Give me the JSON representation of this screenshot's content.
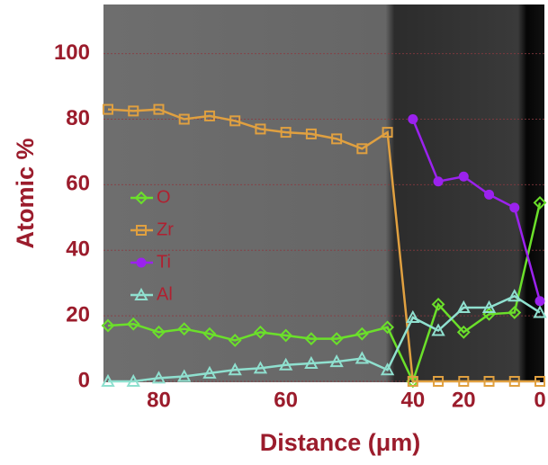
{
  "chart_data": {
    "type": "line",
    "x_label": "Distance (μm)",
    "y_label": "Atomic %",
    "categories": [
      null,
      null,
      "80",
      null,
      null,
      null,
      null,
      "60",
      null,
      null,
      null,
      null,
      "40",
      null,
      "20",
      null,
      null,
      "0"
    ],
    "ylim": [
      0,
      115
    ],
    "yticks": [
      0,
      20,
      40,
      60,
      80,
      100
    ],
    "grid": true,
    "legend": "left",
    "series": [
      {
        "name": "O",
        "color": "#6be02a",
        "marker": "diamond",
        "values": [
          17,
          17.5,
          15,
          16,
          14.5,
          12.5,
          15,
          14,
          13,
          13,
          14.5,
          16.5,
          0,
          23.5,
          15,
          20.5,
          21,
          54.5
        ]
      },
      {
        "name": "Zr",
        "color": "#e0a040",
        "marker": "square",
        "values": [
          83,
          82.5,
          83,
          80,
          81,
          79.5,
          77,
          76,
          75.5,
          74,
          71,
          76,
          0,
          0,
          0,
          0,
          0,
          0
        ]
      },
      {
        "name": "Ti",
        "color": "#9b22ee",
        "marker": "circle",
        "values": [
          null,
          null,
          null,
          null,
          null,
          null,
          null,
          null,
          null,
          null,
          null,
          null,
          80,
          61,
          62.5,
          57,
          53,
          24.5
        ]
      },
      {
        "name": "Al",
        "color": "#8fe0cf",
        "marker": "triangle",
        "values": [
          0,
          0,
          1,
          1.5,
          2.5,
          3.5,
          4,
          5,
          5.5,
          6,
          7,
          3.5,
          19.5,
          15.5,
          22.5,
          22.5,
          26,
          21
        ]
      }
    ]
  }
}
